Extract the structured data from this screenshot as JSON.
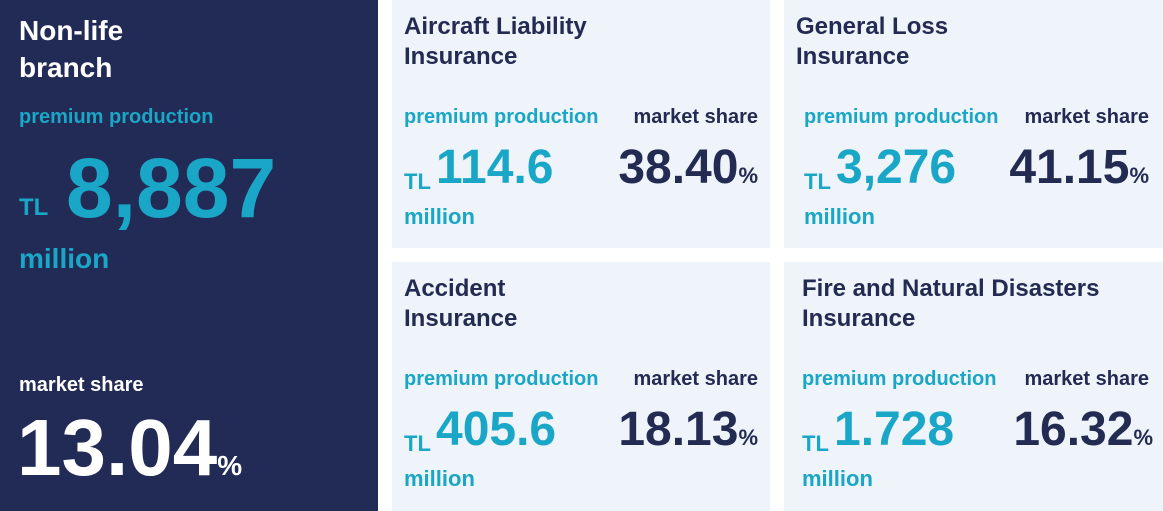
{
  "main": {
    "title_line1": "Non-life",
    "title_line2": "branch",
    "premium_label": "premium production",
    "currency": "TL",
    "value": "8,887",
    "unit": "million",
    "market_share_label": "market share",
    "market_share_value": "13.04",
    "percent": "%"
  },
  "cards": [
    {
      "title_line1": "Aircraft Liability",
      "title_line2": "Insurance",
      "premium_label": "premium production",
      "market_share_label": "market share",
      "currency": "TL",
      "value": "114.6",
      "unit": "million",
      "market_share_value": "38.40",
      "percent": "%"
    },
    {
      "title_line1": "General Loss",
      "title_line2": "Insurance",
      "premium_label": "premium production",
      "market_share_label": "market share",
      "currency": "TL",
      "value": "3,276",
      "unit": "million",
      "market_share_value": "41.15",
      "percent": "%"
    },
    {
      "title_line1": "Accident",
      "title_line2": "Insurance",
      "premium_label": "premium production",
      "market_share_label": "market share",
      "currency": "TL",
      "value": "405.6",
      "unit": "million",
      "market_share_value": "18.13",
      "percent": "%"
    },
    {
      "title_line1": "Fire and Natural Disasters",
      "title_line2": "Insurance",
      "premium_label": "premium production",
      "market_share_label": "market share",
      "currency": "TL",
      "value": "1.728",
      "unit": "million",
      "market_share_value": "16.32",
      "percent": "%"
    }
  ],
  "colors": {
    "navy": "#222b55",
    "cyan": "#1aa6c7",
    "card_bg": "#eef4f9"
  }
}
